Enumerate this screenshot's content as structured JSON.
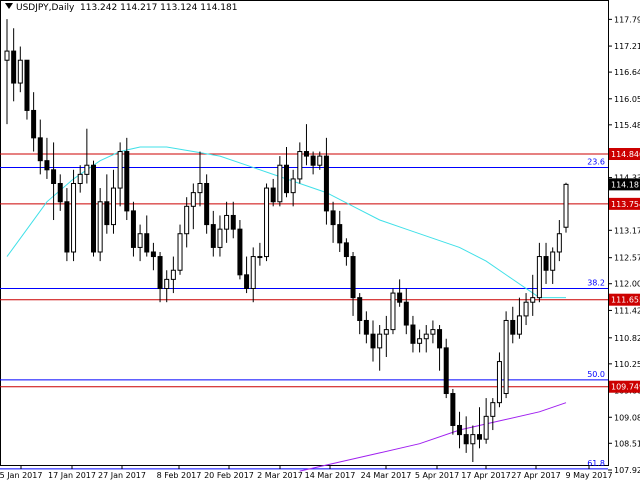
{
  "chart_data": {
    "type": "candlestick",
    "symbol": "USDJPY",
    "timeframe": "Daily",
    "ohlc_header": "113.242 114.217 113.124 114.181",
    "title": "USDJPY,Daily  113.242 114.217 113.124 114.181",
    "ylim": [
      107.925,
      118.0
    ],
    "y_ticks": [
      "117.795",
      "117.210",
      "116.640",
      "116.055",
      "115.485",
      "114.900",
      "114.330",
      "113.745",
      "113.175",
      "112.575",
      "112.005",
      "111.420",
      "110.820",
      "110.250",
      "109.665",
      "109.080",
      "108.510",
      "107.925"
    ],
    "x_ticks": [
      "5 Jan 2017",
      "17 Jan 2017",
      "27 Jan 2017",
      "8 Feb 2017",
      "20 Feb 2017",
      "2 Mar 2017",
      "14 Mar 2017",
      "24 Mar 2017",
      "5 Apr 2017",
      "17 Apr 2017",
      "27 Apr 2017",
      "9 May 2017"
    ],
    "candles": [
      {
        "o": 116.9,
        "h": 117.8,
        "l": 115.5,
        "c": 117.1
      },
      {
        "o": 117.1,
        "h": 117.6,
        "l": 116.0,
        "c": 116.4
      },
      {
        "o": 116.4,
        "h": 117.2,
        "l": 116.2,
        "c": 116.9
      },
      {
        "o": 116.9,
        "h": 116.9,
        "l": 115.6,
        "c": 115.8
      },
      {
        "o": 115.8,
        "h": 116.2,
        "l": 114.9,
        "c": 115.2
      },
      {
        "o": 115.2,
        "h": 115.6,
        "l": 114.4,
        "c": 114.7
      },
      {
        "o": 114.7,
        "h": 115.2,
        "l": 114.3,
        "c": 114.5
      },
      {
        "o": 114.5,
        "h": 115.1,
        "l": 113.4,
        "c": 114.2
      },
      {
        "o": 114.2,
        "h": 114.4,
        "l": 113.6,
        "c": 113.8
      },
      {
        "o": 113.8,
        "h": 114.1,
        "l": 112.5,
        "c": 112.7
      },
      {
        "o": 112.7,
        "h": 114.5,
        "l": 112.5,
        "c": 114.2
      },
      {
        "o": 114.2,
        "h": 114.6,
        "l": 114.0,
        "c": 114.4
      },
      {
        "o": 114.4,
        "h": 115.4,
        "l": 114.2,
        "c": 114.6
      },
      {
        "o": 114.6,
        "h": 114.7,
        "l": 112.6,
        "c": 112.7
      },
      {
        "o": 112.7,
        "h": 114.1,
        "l": 112.5,
        "c": 113.8
      },
      {
        "o": 113.8,
        "h": 114.4,
        "l": 113.1,
        "c": 113.3
      },
      {
        "o": 113.3,
        "h": 114.5,
        "l": 113.1,
        "c": 114.1
      },
      {
        "o": 114.1,
        "h": 115.1,
        "l": 113.7,
        "c": 114.9
      },
      {
        "o": 114.9,
        "h": 115.2,
        "l": 113.4,
        "c": 113.6
      },
      {
        "o": 113.6,
        "h": 113.8,
        "l": 112.6,
        "c": 112.8
      },
      {
        "o": 112.8,
        "h": 113.3,
        "l": 112.5,
        "c": 113.1
      },
      {
        "o": 113.1,
        "h": 113.5,
        "l": 112.6,
        "c": 112.7
      },
      {
        "o": 112.7,
        "h": 112.9,
        "l": 112.3,
        "c": 112.6
      },
      {
        "o": 112.6,
        "h": 112.7,
        "l": 111.6,
        "c": 111.9
      },
      {
        "o": 111.9,
        "h": 112.3,
        "l": 111.6,
        "c": 112.1
      },
      {
        "o": 112.1,
        "h": 112.6,
        "l": 111.8,
        "c": 112.3
      },
      {
        "o": 112.3,
        "h": 113.3,
        "l": 112.2,
        "c": 113.1
      },
      {
        "o": 113.1,
        "h": 113.9,
        "l": 112.8,
        "c": 113.7
      },
      {
        "o": 113.7,
        "h": 114.2,
        "l": 113.2,
        "c": 114.0
      },
      {
        "o": 114.0,
        "h": 114.9,
        "l": 113.7,
        "c": 114.2
      },
      {
        "o": 114.2,
        "h": 114.4,
        "l": 113.1,
        "c": 113.3
      },
      {
        "o": 113.3,
        "h": 113.6,
        "l": 112.6,
        "c": 112.8
      },
      {
        "o": 112.8,
        "h": 113.5,
        "l": 112.6,
        "c": 113.2
      },
      {
        "o": 113.2,
        "h": 113.8,
        "l": 112.9,
        "c": 113.5
      },
      {
        "o": 113.5,
        "h": 113.8,
        "l": 113.0,
        "c": 113.2
      },
      {
        "o": 113.2,
        "h": 113.4,
        "l": 112.1,
        "c": 112.2
      },
      {
        "o": 112.2,
        "h": 112.6,
        "l": 111.8,
        "c": 111.9
      },
      {
        "o": 111.9,
        "h": 112.8,
        "l": 111.6,
        "c": 112.6
      },
      {
        "o": 112.6,
        "h": 112.9,
        "l": 112.4,
        "c": 112.6
      },
      {
        "o": 112.6,
        "h": 114.2,
        "l": 112.5,
        "c": 114.1
      },
      {
        "o": 114.1,
        "h": 114.3,
        "l": 113.7,
        "c": 113.8
      },
      {
        "o": 113.8,
        "h": 114.8,
        "l": 113.7,
        "c": 114.6
      },
      {
        "o": 114.6,
        "h": 115.0,
        "l": 113.9,
        "c": 114.0
      },
      {
        "o": 114.0,
        "h": 114.5,
        "l": 113.7,
        "c": 114.3
      },
      {
        "o": 114.3,
        "h": 115.1,
        "l": 114.2,
        "c": 114.9
      },
      {
        "o": 114.9,
        "h": 115.5,
        "l": 114.6,
        "c": 114.8
      },
      {
        "o": 114.8,
        "h": 114.9,
        "l": 114.4,
        "c": 114.6
      },
      {
        "o": 114.6,
        "h": 114.9,
        "l": 114.5,
        "c": 114.8
      },
      {
        "o": 114.8,
        "h": 115.2,
        "l": 113.3,
        "c": 113.6
      },
      {
        "o": 113.6,
        "h": 113.8,
        "l": 112.9,
        "c": 113.3
      },
      {
        "o": 113.3,
        "h": 113.6,
        "l": 112.7,
        "c": 112.9
      },
      {
        "o": 112.9,
        "h": 113.0,
        "l": 112.4,
        "c": 112.6
      },
      {
        "o": 112.6,
        "h": 112.7,
        "l": 111.3,
        "c": 111.7
      },
      {
        "o": 111.7,
        "h": 111.8,
        "l": 110.9,
        "c": 111.2
      },
      {
        "o": 111.2,
        "h": 111.4,
        "l": 110.7,
        "c": 110.9
      },
      {
        "o": 110.9,
        "h": 111.2,
        "l": 110.3,
        "c": 110.6
      },
      {
        "o": 110.6,
        "h": 111.1,
        "l": 110.1,
        "c": 110.9
      },
      {
        "o": 110.9,
        "h": 111.3,
        "l": 110.4,
        "c": 111.0
      },
      {
        "o": 111.0,
        "h": 111.9,
        "l": 110.9,
        "c": 111.8
      },
      {
        "o": 111.8,
        "h": 112.1,
        "l": 111.5,
        "c": 111.6
      },
      {
        "o": 111.6,
        "h": 111.9,
        "l": 110.9,
        "c": 111.1
      },
      {
        "o": 111.1,
        "h": 111.3,
        "l": 110.5,
        "c": 110.7
      },
      {
        "o": 110.7,
        "h": 111.0,
        "l": 110.5,
        "c": 110.8
      },
      {
        "o": 110.8,
        "h": 111.1,
        "l": 110.5,
        "c": 110.9
      },
      {
        "o": 110.9,
        "h": 111.2,
        "l": 110.7,
        "c": 111.0
      },
      {
        "o": 111.0,
        "h": 111.1,
        "l": 110.1,
        "c": 110.6
      },
      {
        "o": 110.6,
        "h": 110.8,
        "l": 109.5,
        "c": 109.6
      },
      {
        "o": 109.6,
        "h": 109.7,
        "l": 108.7,
        "c": 108.9
      },
      {
        "o": 108.9,
        "h": 109.2,
        "l": 108.4,
        "c": 108.7
      },
      {
        "o": 108.7,
        "h": 109.1,
        "l": 108.3,
        "c": 108.5
      },
      {
        "o": 108.5,
        "h": 108.9,
        "l": 108.1,
        "c": 108.7
      },
      {
        "o": 108.7,
        "h": 109.3,
        "l": 108.4,
        "c": 108.6
      },
      {
        "o": 108.6,
        "h": 109.5,
        "l": 108.5,
        "c": 109.1
      },
      {
        "o": 109.1,
        "h": 109.5,
        "l": 108.8,
        "c": 109.4
      },
      {
        "o": 109.4,
        "h": 110.5,
        "l": 109.3,
        "c": 110.3
      },
      {
        "o": 109.6,
        "h": 111.4,
        "l": 109.5,
        "c": 111.2
      },
      {
        "o": 111.2,
        "h": 111.5,
        "l": 110.7,
        "c": 110.9
      },
      {
        "o": 110.9,
        "h": 111.7,
        "l": 110.8,
        "c": 111.3
      },
      {
        "o": 111.3,
        "h": 111.8,
        "l": 111.1,
        "c": 111.6
      },
      {
        "o": 111.6,
        "h": 112.2,
        "l": 111.3,
        "c": 111.7
      },
      {
        "o": 111.7,
        "h": 112.9,
        "l": 111.6,
        "c": 112.6
      },
      {
        "o": 112.6,
        "h": 112.9,
        "l": 112.0,
        "c": 112.3
      },
      {
        "o": 112.3,
        "h": 112.8,
        "l": 112.0,
        "c": 112.7
      },
      {
        "o": 112.7,
        "h": 113.4,
        "l": 112.5,
        "c": 113.1
      },
      {
        "o": 113.242,
        "h": 114.217,
        "l": 113.124,
        "c": 114.181
      }
    ],
    "ma_cyan": [
      {
        "i": 0,
        "v": 112.6
      },
      {
        "i": 3,
        "v": 113.2
      },
      {
        "i": 6,
        "v": 113.8
      },
      {
        "i": 10,
        "v": 114.3
      },
      {
        "i": 14,
        "v": 114.7
      },
      {
        "i": 17,
        "v": 114.9
      },
      {
        "i": 20,
        "v": 115.0
      },
      {
        "i": 24,
        "v": 115.0
      },
      {
        "i": 28,
        "v": 114.9
      },
      {
        "i": 32,
        "v": 114.8
      },
      {
        "i": 36,
        "v": 114.6
      },
      {
        "i": 40,
        "v": 114.4
      },
      {
        "i": 44,
        "v": 114.2
      },
      {
        "i": 48,
        "v": 114.0
      },
      {
        "i": 52,
        "v": 113.7
      },
      {
        "i": 56,
        "v": 113.4
      },
      {
        "i": 60,
        "v": 113.2
      },
      {
        "i": 64,
        "v": 113.0
      },
      {
        "i": 68,
        "v": 112.8
      },
      {
        "i": 72,
        "v": 112.5
      },
      {
        "i": 76,
        "v": 112.1
      },
      {
        "i": 80,
        "v": 111.7
      },
      {
        "i": 84,
        "v": 111.7
      }
    ],
    "ma_purple": [
      {
        "i": 44,
        "v": 107.9
      },
      {
        "i": 50,
        "v": 108.1
      },
      {
        "i": 56,
        "v": 108.3
      },
      {
        "i": 62,
        "v": 108.5
      },
      {
        "i": 68,
        "v": 108.8
      },
      {
        "i": 74,
        "v": 109.0
      },
      {
        "i": 80,
        "v": 109.2
      },
      {
        "i": 84,
        "v": 109.4
      }
    ],
    "support_resistance": [
      114.846,
      113.754,
      111.655,
      109.749
    ],
    "fib_levels": [
      {
        "label": "23.6",
        "value": 114.55
      },
      {
        "label": "38.2",
        "value": 111.9
      },
      {
        "label": "50.0",
        "value": 109.9
      },
      {
        "label": "61.8",
        "value": 107.95
      }
    ],
    "highlighted_prices": [
      "114.846",
      "114.181",
      "113.754",
      "111.655",
      "109.749"
    ],
    "current_price": "114.181",
    "colors": {
      "background": "#ffffff",
      "candle_up": "#ffffff",
      "candle_down": "#000000",
      "support_resistance": "#cc0000",
      "fib": "#0000ff",
      "ma_cyan": "#40e0e8",
      "ma_purple": "#a020f0",
      "price_tag": "#000000",
      "level_tag": "#cc0000"
    }
  }
}
